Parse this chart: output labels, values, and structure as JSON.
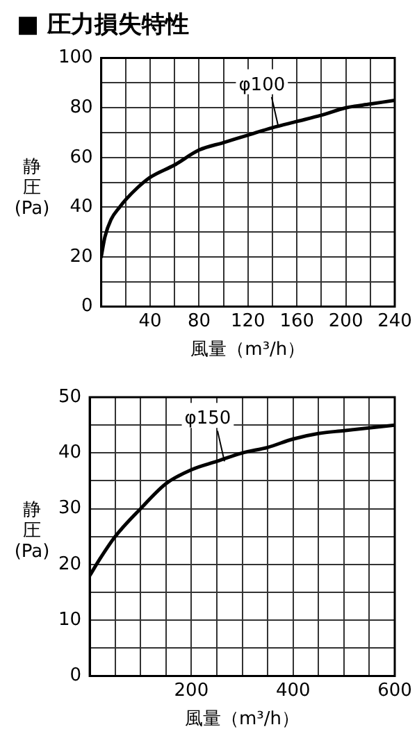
{
  "chart_data": [
    {
      "type": "line",
      "title": "■ 圧力損失特性",
      "xlabel": "風量（m³/h）",
      "ylabel": "静圧(Pa)",
      "x": [
        0,
        3,
        8,
        15,
        20,
        30,
        40,
        60,
        80,
        100,
        120,
        140,
        160,
        180,
        200,
        220,
        240
      ],
      "series": [
        {
          "color": "#000000",
          "values": [
            20,
            28,
            35,
            40,
            43,
            48,
            52,
            57,
            63,
            66,
            69,
            72,
            74.5,
            77,
            80,
            81.5,
            83
          ]
        }
      ],
      "xlim": [
        0,
        240
      ],
      "xticks": [
        {
          "value": 0,
          "label": null
        },
        {
          "value": 20,
          "label": null
        },
        40,
        {
          "value": 60,
          "label": null
        },
        80,
        {
          "value": 100,
          "label": null
        },
        120,
        {
          "value": 140,
          "label": null
        },
        160,
        {
          "value": 180,
          "label": null
        },
        200,
        {
          "value": 220,
          "label": null
        },
        240
      ],
      "ylim": [
        0,
        100
      ],
      "yticks": [
        0,
        {
          "value": 10,
          "label": null
        },
        20,
        {
          "value": 30,
          "label": null
        },
        40,
        {
          "value": 50,
          "label": null
        },
        60,
        {
          "value": 70,
          "label": null
        },
        80,
        {
          "value": 90,
          "label": null
        },
        100
      ],
      "grid": true,
      "legend": false,
      "marker": "none",
      "line_style": "solid",
      "annotations": [
        {
          "text": "φ100",
          "x": 145,
          "y": 72
        }
      ]
    },
    {
      "type": "line",
      "xlabel": "風量（m³/h）",
      "ylabel": "静圧(Pa)",
      "x": [
        0,
        20,
        50,
        100,
        150,
        200,
        250,
        300,
        350,
        400,
        450,
        500,
        600
      ],
      "series": [
        {
          "color": "#000000",
          "values": [
            18,
            21,
            25,
            30,
            34.5,
            37,
            38.5,
            40,
            41,
            42.5,
            43.5,
            44,
            45
          ]
        }
      ],
      "xlim": [
        0,
        600
      ],
      "xticks": [
        {
          "value": 0,
          "label": null
        },
        {
          "value": 50,
          "label": null
        },
        {
          "value": 100,
          "label": null
        },
        {
          "value": 150,
          "label": null
        },
        200,
        {
          "value": 250,
          "label": null
        },
        {
          "value": 300,
          "label": null
        },
        {
          "value": 350,
          "label": null
        },
        400,
        {
          "value": 450,
          "label": null
        },
        {
          "value": 500,
          "label": null
        },
        {
          "value": 550,
          "label": null
        },
        600
      ],
      "ylim": [
        0,
        50
      ],
      "yticks": [
        0,
        {
          "value": 5,
          "label": null
        },
        10,
        {
          "value": 15,
          "label": null
        },
        20,
        {
          "value": 25,
          "label": null
        },
        30,
        {
          "value": 35,
          "label": null
        },
        40,
        {
          "value": 45,
          "label": null
        },
        50
      ],
      "grid": true,
      "legend": false,
      "marker": "none",
      "line_style": "solid",
      "annotations": [
        {
          "text": "φ150",
          "x": 265,
          "y": 38.5
        }
      ]
    }
  ]
}
